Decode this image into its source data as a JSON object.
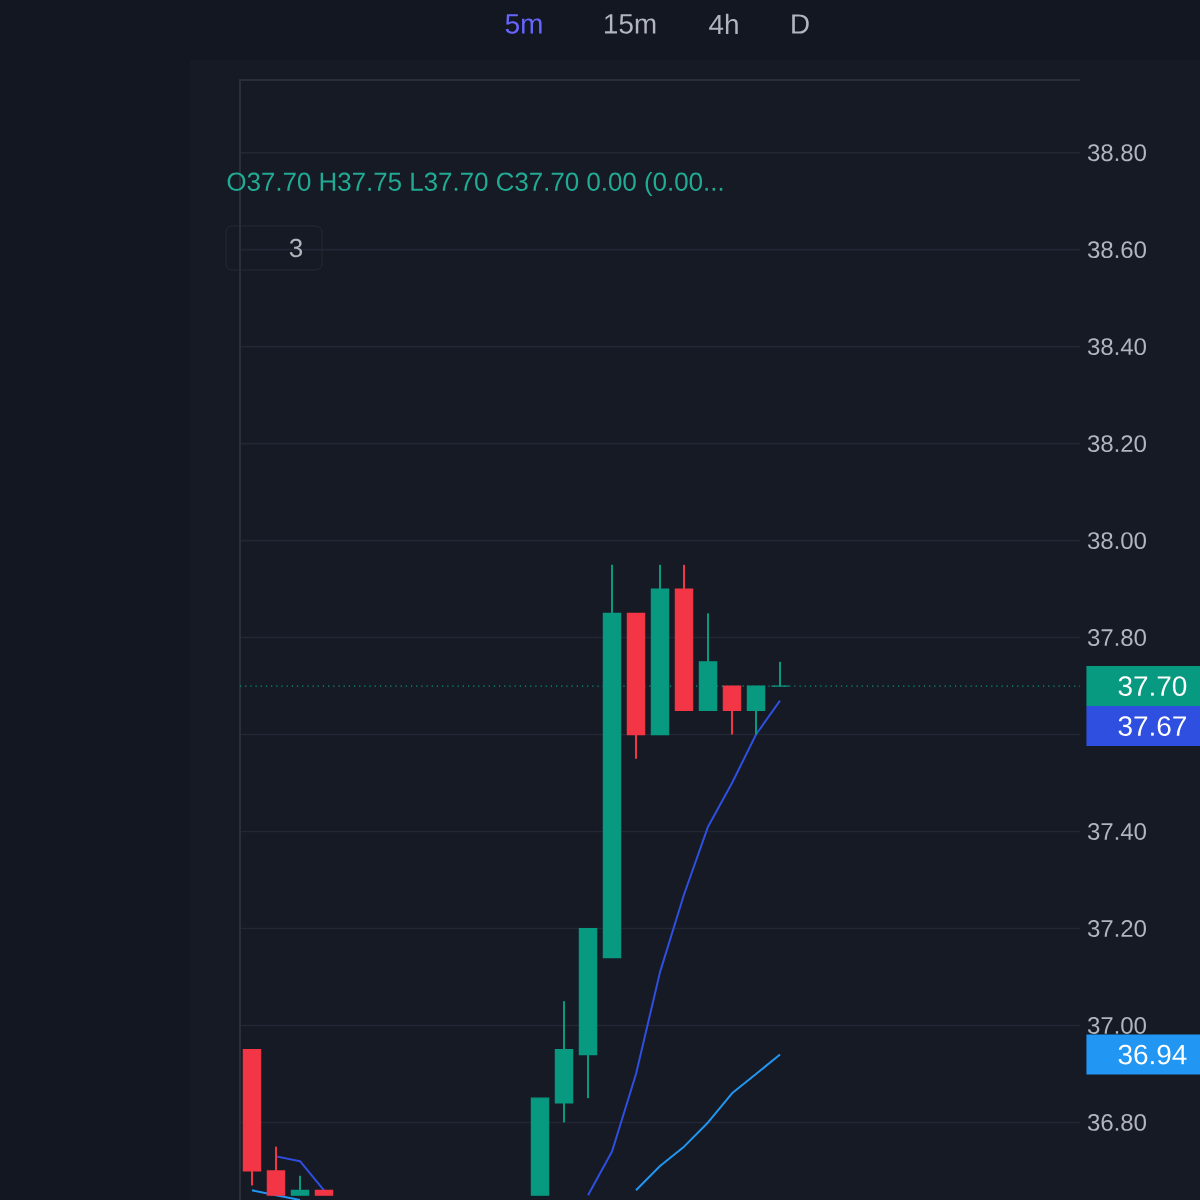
{
  "chart_data": {
    "type": "candlestick",
    "categories": [
      null,
      null,
      null,
      null,
      null,
      null,
      null,
      null,
      null,
      null,
      null,
      null,
      null,
      null,
      null,
      null,
      null,
      null,
      null,
      null,
      null,
      null,
      null,
      null,
      null,
      null,
      null,
      null,
      null,
      null,
      null,
      null,
      null,
      null,
      null
    ],
    "ohlc": [
      [
        36.95,
        36.95,
        36.67,
        36.7
      ],
      [
        36.7,
        36.75,
        36.65,
        36.65
      ],
      [
        36.65,
        36.69,
        36.65,
        36.66
      ],
      [
        36.66,
        36.66,
        36.65,
        36.65
      ],
      null,
      null,
      null,
      null,
      null,
      null,
      null,
      null,
      [
        36.65,
        36.85,
        36.65,
        36.85
      ],
      [
        36.84,
        37.05,
        36.8,
        36.95
      ],
      [
        36.94,
        37.2,
        36.85,
        37.2
      ],
      [
        37.14,
        37.95,
        37.14,
        37.85
      ],
      [
        37.85,
        37.85,
        37.55,
        37.6
      ],
      [
        37.6,
        37.95,
        37.6,
        37.9
      ],
      [
        37.9,
        37.95,
        37.65,
        37.65
      ],
      [
        37.65,
        37.85,
        37.65,
        37.75
      ],
      [
        37.7,
        37.7,
        37.6,
        37.65
      ],
      [
        37.65,
        37.7,
        37.6,
        37.7
      ],
      [
        37.7,
        37.75,
        37.7,
        37.7
      ],
      null,
      null,
      null,
      null,
      null,
      null,
      null,
      null,
      null,
      null,
      null,
      null
    ],
    "colors": [
      "#f23645",
      "#f23645",
      "#089981",
      "#f23645",
      null,
      null,
      null,
      null,
      null,
      null,
      null,
      null,
      "#089981",
      "#089981",
      "#089981",
      "#089981",
      "#f23645",
      "#089981",
      "#f23645",
      "#089981",
      "#f23645",
      "#089981",
      "#089981",
      null,
      null,
      null,
      null,
      null,
      null,
      null,
      null,
      null,
      null,
      null,
      null
    ],
    "series": [
      {
        "type": "line",
        "color": "#2f4fe0",
        "values": [
          null,
          36.73,
          36.72,
          36.66,
          null,
          null,
          null,
          null,
          null,
          null,
          null,
          null,
          null,
          null,
          36.65,
          36.74,
          36.9,
          37.11,
          37.27,
          37.41,
          37.5,
          37.6,
          37.67,
          null,
          null,
          null,
          null,
          null,
          null,
          null,
          null,
          null,
          null,
          null,
          null
        ]
      },
      {
        "type": "line",
        "color": "#2196f3",
        "values": [
          36.66,
          36.65,
          36.64,
          null,
          null,
          null,
          null,
          null,
          null,
          null,
          null,
          null,
          null,
          null,
          null,
          null,
          36.66,
          36.71,
          36.75,
          36.8,
          36.86,
          36.9,
          36.94,
          null,
          null,
          null,
          null,
          null,
          null,
          null,
          null,
          null,
          null,
          null,
          null
        ]
      }
    ],
    "ylim": [
      36.64,
      38.95
    ],
    "yticks": [
      {
        "value": 36.8,
        "label": "36.80"
      },
      {
        "value": 37.0,
        "label": "37.00"
      },
      {
        "value": 37.2,
        "label": "37.20"
      },
      {
        "value": 37.4,
        "label": "37.40"
      },
      {
        "value": 37.6,
        "label": null
      },
      {
        "value": 37.8,
        "label": "37.80"
      },
      {
        "value": 38.0,
        "label": "38.00"
      },
      {
        "value": 38.2,
        "label": "38.20"
      },
      {
        "value": 38.4,
        "label": "38.40"
      },
      {
        "value": 38.6,
        "label": "38.60"
      },
      {
        "value": 38.8,
        "label": "38.80"
      }
    ],
    "tick_labels": "y",
    "grid": true,
    "ref_lines": [
      {
        "axis": "y",
        "value": 37.7,
        "label": "37.70",
        "color": "#089981",
        "line_style": "dotted"
      }
    ],
    "annotations": [
      "O37.70 H37.75 L37.70 C37.70 0.00 (0.00...",
      "5m",
      "15m",
      "4h",
      "D",
      "3",
      "37.67",
      "36.94"
    ]
  }
}
